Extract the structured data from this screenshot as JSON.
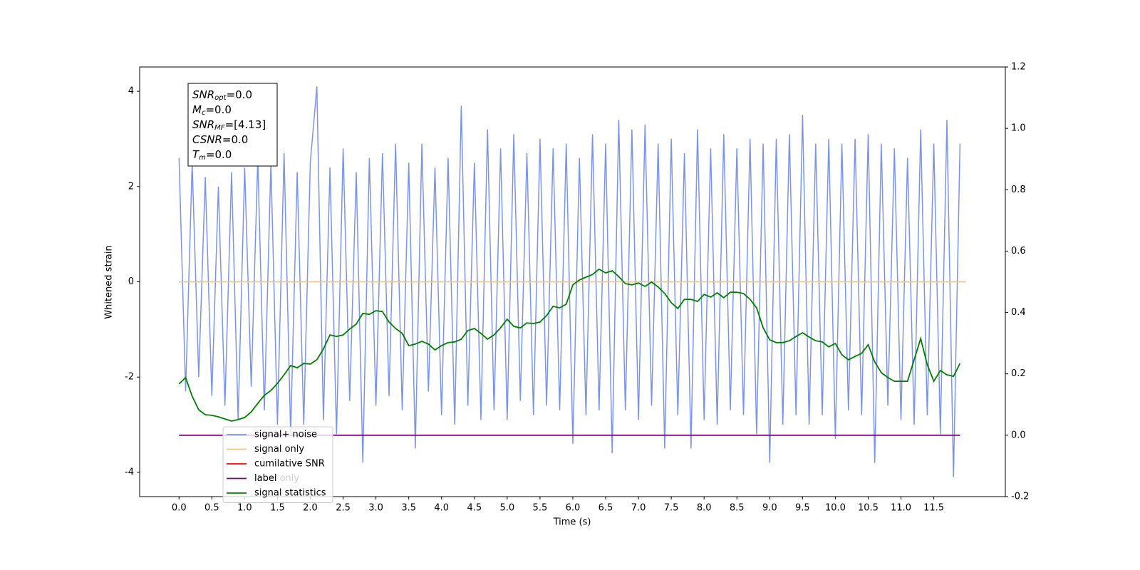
{
  "chart_data": {
    "type": "line",
    "xlabel": "Time (s)",
    "ylabel": "Whitened strain",
    "xlim": [
      -0.6,
      12.59
    ],
    "ylim": [
      -4.51,
      4.51
    ],
    "y2lim": [
      -0.2,
      1.2
    ],
    "xticks": [
      {
        "value": 0,
        "label": "0.0"
      },
      {
        "value": 0.5,
        "label": "0.5"
      },
      {
        "value": 1,
        "label": "1.0"
      },
      {
        "value": 1.5,
        "label": "1.5"
      },
      {
        "value": 2,
        "label": "2.0"
      },
      {
        "value": 2.5,
        "label": "2.5"
      },
      {
        "value": 3,
        "label": "3.0"
      },
      {
        "value": 3.5,
        "label": "3.5"
      },
      {
        "value": 4,
        "label": "4.0"
      },
      {
        "value": 4.5,
        "label": "4.5"
      },
      {
        "value": 5,
        "label": "5.0"
      },
      {
        "value": 5.5,
        "label": "5.5"
      },
      {
        "value": 6,
        "label": "6.0"
      },
      {
        "value": 6.5,
        "label": "6.5"
      },
      {
        "value": 7,
        "label": "7.0"
      },
      {
        "value": 7.5,
        "label": "7.5"
      },
      {
        "value": 8,
        "label": "8.0"
      },
      {
        "value": 8.5,
        "label": "8.5"
      },
      {
        "value": 9,
        "label": "9.0"
      },
      {
        "value": 9.5,
        "label": "9.5"
      },
      {
        "value": 10,
        "label": "10.0"
      },
      {
        "value": 10.5,
        "label": "10.5"
      },
      {
        "value": 11,
        "label": "11.0"
      },
      {
        "value": 11.5,
        "label": "11.5"
      }
    ],
    "yticks": [
      -4,
      -2,
      0,
      2,
      4
    ],
    "y2ticks": [
      -0.2,
      {
        "value": 0,
        "label": "0.0"
      },
      0.2,
      0.4,
      0.6,
      0.8,
      {
        "value": 1,
        "label": "1.0"
      },
      1.2
    ],
    "x": [
      0,
      0.1,
      0.2,
      0.3,
      0.4,
      0.5,
      0.6,
      0.7,
      0.8,
      0.9,
      1,
      1.1,
      1.2,
      1.3,
      1.4,
      1.5,
      1.6,
      1.7,
      1.8,
      1.9,
      2,
      2.1,
      2.2,
      2.3,
      2.4,
      2.5,
      2.6,
      2.7,
      2.8,
      2.9,
      3,
      3.1,
      3.2,
      3.3,
      3.4,
      3.5,
      3.6,
      3.7,
      3.8,
      3.9,
      4,
      4.1,
      4.2,
      4.3,
      4.4,
      4.5,
      4.6,
      4.7,
      4.8,
      4.9,
      5,
      5.1,
      5.2,
      5.3,
      5.4,
      5.5,
      5.6,
      5.7,
      5.8,
      5.9,
      6,
      6.1,
      6.2,
      6.3,
      6.4,
      6.5,
      6.6,
      6.7,
      6.8,
      6.9,
      7,
      7.1,
      7.2,
      7.3,
      7.4,
      7.5,
      7.6,
      7.7,
      7.8,
      7.9,
      8,
      8.1,
      8.2,
      8.3,
      8.4,
      8.5,
      8.6,
      8.7,
      8.8,
      8.9,
      9,
      9.1,
      9.2,
      9.3,
      9.4,
      9.5,
      9.6,
      9.7,
      9.8,
      9.9,
      10,
      10.1,
      10.2,
      10.3,
      10.4,
      10.5,
      10.6,
      10.7,
      10.8,
      10.9,
      11,
      11.1,
      11.2,
      11.3,
      11.4,
      11.5,
      11.6,
      11.7,
      11.8,
      11.9
    ],
    "series": [
      {
        "name": "signal+ noise",
        "color": "#7b95e6",
        "values": [
          2.6,
          -2.3,
          2.5,
          -2.0,
          2.2,
          -2.4,
          2.0,
          -2.6,
          2.3,
          -2.9,
          2.4,
          -2.2,
          2.6,
          -2.7,
          2.5,
          -3.0,
          2.7,
          -3.2,
          2.3,
          -3.0,
          2.5,
          4.1,
          -2.9,
          2.4,
          -3.2,
          2.8,
          -2.5,
          2.3,
          -3.8,
          2.6,
          -2.6,
          2.7,
          -2.4,
          2.9,
          -2.7,
          2.5,
          -3.5,
          2.9,
          -2.3,
          2.4,
          -2.8,
          2.6,
          -3.0,
          3.7,
          -2.6,
          2.5,
          -2.9,
          3.2,
          -2.7,
          2.8,
          -2.9,
          3.1,
          -2.5,
          2.7,
          -2.8,
          3.0,
          -2.6,
          2.8,
          -2.7,
          2.9,
          -3.4,
          2.6,
          -2.8,
          3.1,
          -2.7,
          2.9,
          -3.6,
          3.4,
          -2.7,
          3.2,
          -2.9,
          3.3,
          -2.6,
          2.9,
          -3.5,
          3.0,
          -2.8,
          2.7,
          -3.5,
          3.2,
          -2.9,
          2.8,
          -3.0,
          3.1,
          -2.7,
          2.8,
          -2.8,
          3.0,
          -3.2,
          2.9,
          -3.8,
          3.0,
          -3.0,
          3.1,
          -2.8,
          3.5,
          -3.0,
          2.9,
          -2.8,
          3.0,
          -3.3,
          2.9,
          -2.7,
          3.0,
          -2.8,
          3.1,
          -3.8,
          2.9,
          -2.6,
          2.8,
          -2.9,
          2.6,
          -3.0,
          3.2,
          -2.8,
          2.9,
          -3.2,
          3.4,
          -4.1,
          2.9
        ]
      },
      {
        "name": "signal only",
        "color": "#f5c57f",
        "x": [
          0,
          11.99
        ],
        "values": [
          0,
          0
        ]
      },
      {
        "name": "cumilative SNR",
        "color": "#ff0000",
        "x": [],
        "values": []
      },
      {
        "name": "label",
        "color": "#800080",
        "axis": "y2",
        "x": [
          0,
          11.9
        ],
        "values": [
          0,
          0
        ]
      },
      {
        "name": "signal statistics",
        "color": "#008000",
        "axis": "y2",
        "values": [
          0.167,
          0.188,
          0.127,
          0.083,
          0.067,
          0.065,
          0.06,
          0.053,
          0.046,
          0.051,
          0.058,
          0.076,
          0.104,
          0.13,
          0.146,
          0.169,
          0.197,
          0.227,
          0.22,
          0.234,
          0.232,
          0.246,
          0.281,
          0.327,
          0.322,
          0.327,
          0.346,
          0.362,
          0.397,
          0.394,
          0.406,
          0.403,
          0.369,
          0.348,
          0.332,
          0.292,
          0.297,
          0.306,
          0.297,
          0.278,
          0.292,
          0.302,
          0.304,
          0.313,
          0.341,
          0.348,
          0.332,
          0.313,
          0.327,
          0.35,
          0.378,
          0.355,
          0.35,
          0.366,
          0.364,
          0.369,
          0.39,
          0.42,
          0.415,
          0.427,
          0.49,
          0.506,
          0.515,
          0.524,
          0.541,
          0.529,
          0.536,
          0.517,
          0.494,
          0.49,
          0.496,
          0.485,
          0.499,
          0.483,
          0.462,
          0.432,
          0.413,
          0.443,
          0.443,
          0.436,
          0.459,
          0.45,
          0.464,
          0.448,
          0.466,
          0.466,
          0.462,
          0.443,
          0.415,
          0.35,
          0.311,
          0.302,
          0.302,
          0.308,
          0.322,
          0.334,
          0.32,
          0.308,
          0.304,
          0.288,
          0.299,
          0.262,
          0.246,
          0.257,
          0.267,
          0.295,
          0.239,
          0.204,
          0.188,
          0.176,
          0.176,
          0.176,
          0.246,
          0.315,
          0.23,
          0.176,
          0.211,
          0.197,
          0.192,
          0.234
        ]
      }
    ],
    "legend_loc": "lower left",
    "hidden_legend_text": "label only",
    "textbox": [
      {
        "base": "SNR",
        "sub": "opt",
        "text": "=0.0"
      },
      {
        "base": "M",
        "sub": "c",
        "text": "=0.0"
      },
      {
        "base": "SNR",
        "sub": "MF",
        "text": "=[4.13]"
      },
      {
        "base": "CSNR",
        "sub": null,
        "text": "=0.0"
      },
      {
        "base": "T",
        "sub": "m",
        "text": "=0.0"
      }
    ]
  }
}
